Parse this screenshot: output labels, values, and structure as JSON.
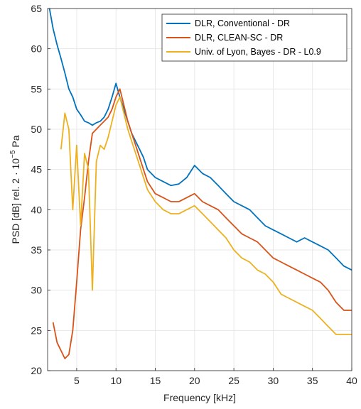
{
  "chart_data": {
    "type": "line",
    "xlabel": "Frequency [kHz]",
    "ylabel": "PSD [dB] rel. 2 · 10",
    "ylabel_exponent": "−5",
    "ylabel_suffix": " Pa",
    "xlim": [
      1.3,
      40
    ],
    "ylim": [
      20,
      65
    ],
    "xticks": [
      5,
      10,
      15,
      20,
      25,
      30,
      35,
      40
    ],
    "yticks": [
      20,
      25,
      30,
      35,
      40,
      45,
      50,
      55,
      60,
      65
    ],
    "grid": true,
    "legend_position": "top-right",
    "series": [
      {
        "name": "DLR, Conventional - DR",
        "color": "#0072BD",
        "x": [
          1.5,
          2.0,
          2.5,
          3.0,
          3.5,
          4.0,
          4.5,
          5.0,
          5.5,
          6.0,
          6.5,
          7.0,
          7.5,
          8.0,
          8.5,
          9.0,
          9.5,
          10.0,
          10.5,
          11.0,
          11.5,
          12.0,
          12.5,
          13.0,
          13.5,
          14.0,
          15.0,
          16.0,
          17.0,
          18.0,
          19.0,
          20.0,
          21.0,
          22.0,
          23.0,
          24.0,
          25.0,
          26.0,
          27.0,
          28.0,
          29.0,
          30.0,
          31.0,
          32.0,
          33.0,
          34.0,
          35.0,
          36.0,
          37.0,
          38.0,
          39.0,
          40.0
        ],
        "values": [
          65.2,
          62.5,
          60.5,
          58.8,
          57.0,
          55.0,
          54.0,
          52.5,
          51.8,
          51.0,
          50.8,
          50.5,
          50.8,
          51.0,
          51.5,
          52.5,
          54.0,
          55.7,
          54.0,
          52.5,
          51.0,
          49.5,
          48.5,
          47.5,
          46.5,
          45.0,
          44.0,
          43.5,
          43.0,
          43.2,
          44.0,
          45.5,
          44.5,
          44.0,
          43.0,
          42.0,
          41.0,
          40.5,
          40.0,
          39.0,
          38.0,
          37.5,
          37.0,
          36.5,
          36.0,
          36.5,
          36.0,
          35.5,
          35.0,
          34.0,
          33.0,
          32.5
        ]
      },
      {
        "name": "DLR, CLEAN-SC - DR",
        "color": "#D95319",
        "x": [
          2.0,
          2.5,
          3.0,
          3.5,
          4.0,
          4.5,
          5.0,
          5.5,
          6.0,
          6.5,
          7.0,
          7.5,
          8.0,
          8.5,
          9.0,
          9.5,
          10.0,
          10.5,
          11.0,
          11.5,
          12.0,
          12.5,
          13.0,
          13.5,
          14.0,
          15.0,
          16.0,
          17.0,
          18.0,
          19.0,
          20.0,
          21.0,
          22.0,
          23.0,
          24.0,
          25.0,
          26.0,
          27.0,
          28.0,
          29.0,
          30.0,
          31.0,
          32.0,
          33.0,
          34.0,
          35.0,
          36.0,
          37.0,
          38.0,
          39.0,
          40.0
        ],
        "values": [
          26.0,
          23.5,
          22.5,
          21.5,
          22.0,
          25.0,
          31.0,
          37.5,
          41.5,
          46.0,
          49.5,
          50.0,
          50.5,
          51.0,
          51.5,
          52.5,
          54.0,
          55.0,
          53.0,
          51.0,
          49.5,
          48.0,
          46.5,
          45.0,
          43.5,
          42.0,
          41.5,
          41.0,
          41.0,
          41.5,
          42.0,
          41.0,
          40.5,
          40.0,
          39.0,
          38.0,
          37.0,
          36.5,
          36.0,
          35.0,
          34.0,
          33.5,
          33.0,
          32.5,
          32.0,
          31.5,
          31.0,
          30.0,
          28.5,
          27.5,
          27.5
        ]
      },
      {
        "name": "Univ. of Lyon, Bayes - DR - L0.9",
        "color": "#EDB120",
        "x": [
          3.0,
          3.5,
          4.0,
          4.5,
          5.0,
          5.5,
          6.0,
          6.5,
          7.0,
          7.5,
          8.0,
          8.5,
          9.0,
          9.5,
          10.0,
          10.5,
          11.0,
          11.5,
          12.0,
          12.5,
          13.0,
          13.5,
          14.0,
          15.0,
          16.0,
          17.0,
          18.0,
          19.0,
          20.0,
          21.0,
          22.0,
          23.0,
          24.0,
          25.0,
          26.0,
          27.0,
          28.0,
          29.0,
          30.0,
          31.0,
          32.0,
          33.0,
          34.0,
          35.0,
          36.0,
          37.0,
          38.0,
          39.0,
          40.0
        ],
        "values": [
          47.5,
          52.0,
          50.0,
          40.0,
          48.0,
          38.0,
          47.0,
          45.0,
          30.0,
          46.0,
          48.0,
          47.5,
          49.0,
          51.0,
          53.0,
          54.0,
          52.0,
          50.0,
          48.5,
          47.0,
          45.5,
          44.0,
          42.5,
          41.0,
          40.0,
          39.5,
          39.5,
          40.0,
          40.5,
          39.5,
          38.5,
          37.5,
          36.5,
          35.0,
          34.0,
          33.5,
          32.5,
          32.0,
          31.0,
          29.5,
          29.0,
          28.5,
          28.0,
          27.5,
          26.5,
          25.5,
          24.5,
          24.5,
          24.5
        ]
      }
    ]
  }
}
